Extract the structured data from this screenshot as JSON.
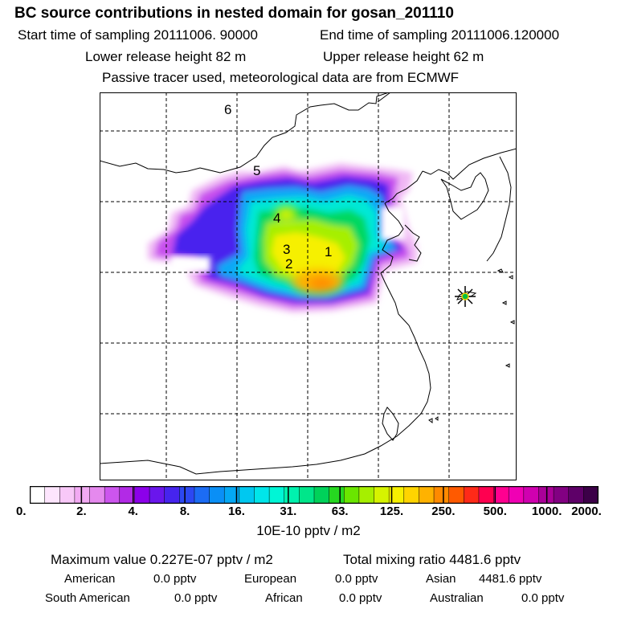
{
  "header": {
    "title": "BC  source contributions in nested domain for gosan_201110",
    "start_label": "Start time of sampling 20111006. 90000",
    "end_label": "End time of sampling 20111006.120000",
    "lower_label": "Lower release height   82 m",
    "upper_label": "Upper release height   62 m",
    "tracer_note": "Passive tracer used, meteorological data are from ECMWF"
  },
  "map": {
    "region_labels": [
      "6",
      "5",
      "4",
      "3",
      "2",
      "1"
    ],
    "receptor_marker": "star-icon"
  },
  "colorbar": {
    "ticks": [
      "0.",
      "2.",
      "4.",
      "8.",
      "16.",
      "31.",
      "63.",
      "125.",
      "250.",
      "500.",
      "1000.",
      "2000."
    ],
    "colors": [
      "#ffffff",
      "#fde5fd",
      "#f8c8f8",
      "#f2aaf3",
      "#e589ee",
      "#cc55ee",
      "#b22ae6",
      "#8c00ea",
      "#6a16ec",
      "#4624ee",
      "#2c48f2",
      "#1c6cf4",
      "#0a8ff6",
      "#04a8f4",
      "#00c8f0",
      "#00e6ea",
      "#00f6d6",
      "#00f2ae",
      "#00e68a",
      "#00d25a",
      "#26d820",
      "#6ae600",
      "#a6ef00",
      "#d6f300",
      "#f6f000",
      "#ffd400",
      "#ffb200",
      "#ff8a00",
      "#ff5a00",
      "#ff2a18",
      "#ff0050",
      "#ff0090",
      "#f000b4",
      "#d000b0",
      "#aa0098",
      "#820082",
      "#5e0068",
      "#3c0048"
    ],
    "unit": "10E-10 pptv / m2"
  },
  "summary": {
    "max_text": "Maximum value  0.227E-07 pptv / m2",
    "total_text": "Total mixing ratio     4481.6 pptv",
    "sources": [
      {
        "name": "American",
        "value": "0.0 pptv"
      },
      {
        "name": "European",
        "value": "0.0 pptv"
      },
      {
        "name": "Asian",
        "value": "4481.6 pptv"
      },
      {
        "name": "South American",
        "value": "0.0 pptv"
      },
      {
        "name": "African",
        "value": "0.0 pptv"
      },
      {
        "name": "Australian",
        "value": "0.0 pptv"
      }
    ]
  }
}
